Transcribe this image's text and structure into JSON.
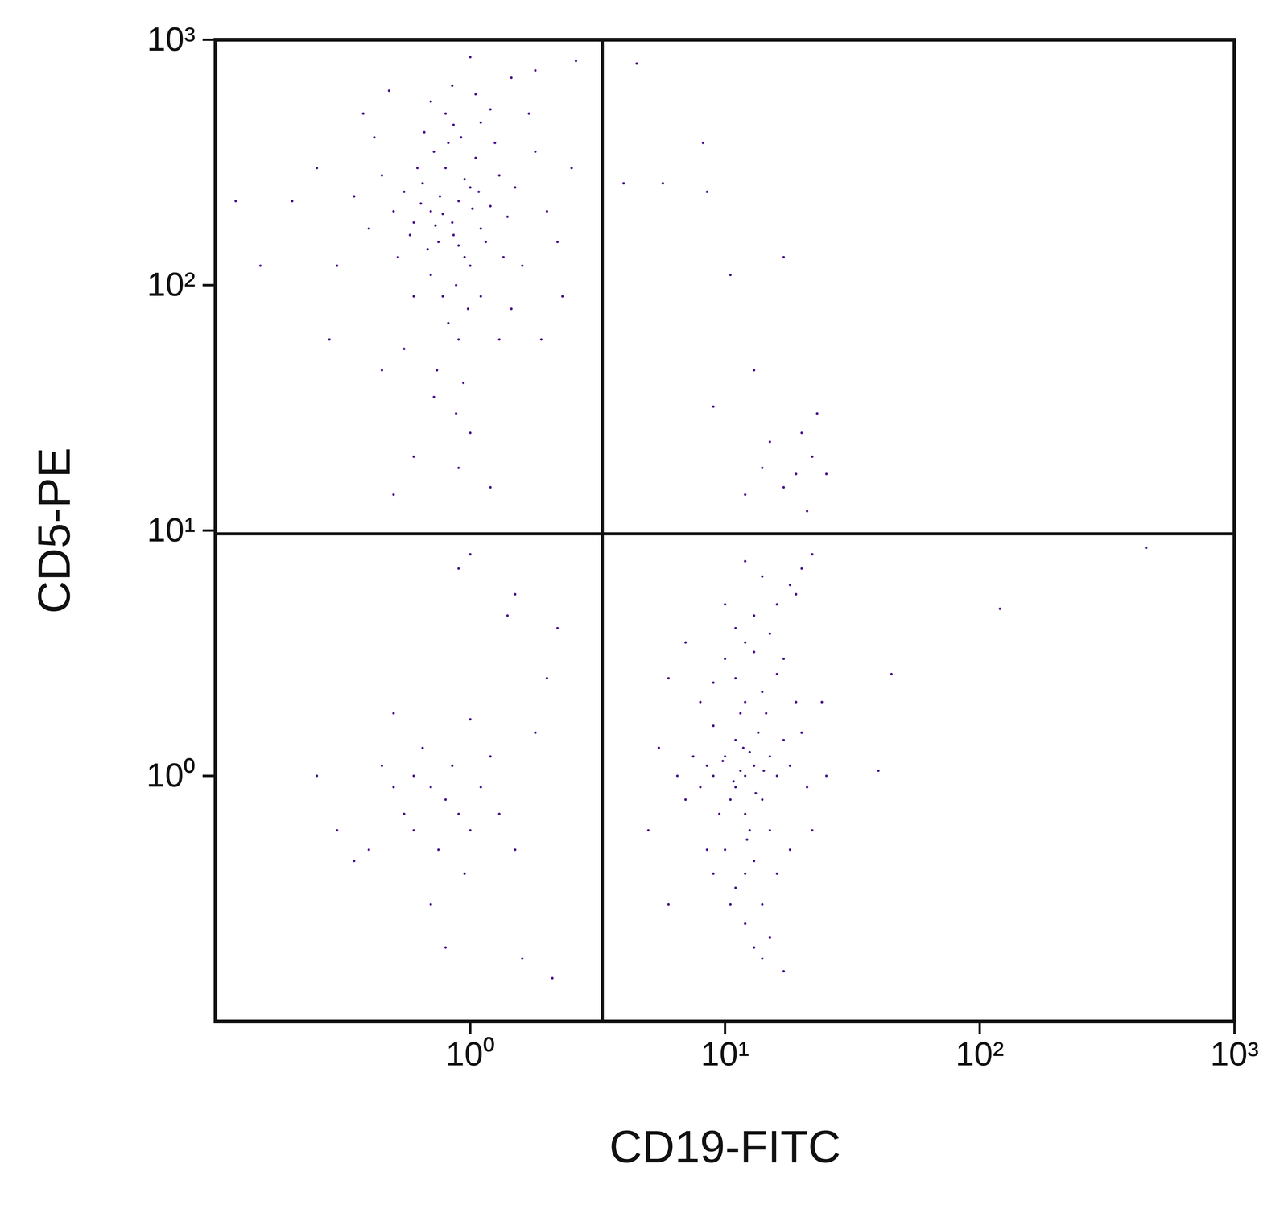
{
  "chart_data": {
    "type": "scatter",
    "xlabel": "CD19-FITC",
    "ylabel": "CD5-PE",
    "log": true,
    "grid": false,
    "color": "#4a148c",
    "marker": "dot",
    "xlim": [
      0.1,
      1000
    ],
    "ylim": [
      0.1,
      1000
    ],
    "xticks": [
      {
        "value": 1,
        "label": "10⁰"
      },
      {
        "value": 10,
        "label": "10¹"
      },
      {
        "value": 100,
        "label": "10²"
      },
      {
        "value": 1000,
        "label": "10³"
      }
    ],
    "yticks": [
      {
        "value": 1,
        "label": "10⁰"
      },
      {
        "value": 10,
        "label": "10¹"
      },
      {
        "value": 100,
        "label": "10²"
      },
      {
        "value": 1000,
        "label": "10³"
      }
    ],
    "quadrant_lines": {
      "x": 3.3,
      "y": 9.7
    },
    "points": [
      [
        0.85,
        180
      ],
      [
        0.9,
        220
      ],
      [
        0.75,
        150
      ],
      [
        1.0,
        250
      ],
      [
        0.8,
        300
      ],
      [
        0.7,
        200
      ],
      [
        0.95,
        130
      ],
      [
        1.1,
        170
      ],
      [
        0.65,
        260
      ],
      [
        0.88,
        100
      ],
      [
        1.2,
        210
      ],
      [
        0.6,
        180
      ],
      [
        0.78,
        90
      ],
      [
        1.05,
        330
      ],
      [
        0.92,
        400
      ],
      [
        0.55,
        240
      ],
      [
        0.72,
        350
      ],
      [
        1.3,
        280
      ],
      [
        0.82,
        70
      ],
      [
        1.0,
        120
      ],
      [
        0.68,
        140
      ],
      [
        1.15,
        150
      ],
      [
        0.5,
        200
      ],
      [
        0.86,
        450
      ],
      [
        1.25,
        380
      ],
      [
        0.98,
        80
      ],
      [
        0.62,
        300
      ],
      [
        0.76,
        230
      ],
      [
        1.4,
        190
      ],
      [
        0.58,
        160
      ],
      [
        0.9,
        60
      ],
      [
        1.1,
        90
      ],
      [
        0.7,
        110
      ],
      [
        1.35,
        130
      ],
      [
        0.45,
        280
      ],
      [
        0.8,
        500
      ],
      [
        1.5,
        250
      ],
      [
        0.66,
        420
      ],
      [
        1.2,
        520
      ],
      [
        0.52,
        130
      ],
      [
        0.94,
        40
      ],
      [
        0.74,
        45
      ],
      [
        1.6,
        120
      ],
      [
        0.4,
        170
      ],
      [
        1.05,
        600
      ],
      [
        0.85,
        650
      ],
      [
        1.8,
        350
      ],
      [
        0.35,
        230
      ],
      [
        1.45,
        80
      ],
      [
        0.6,
        90
      ],
      [
        0.88,
        30
      ],
      [
        1.0,
        25
      ],
      [
        0.55,
        55
      ],
      [
        1.3,
        60
      ],
      [
        0.72,
        35
      ],
      [
        2.0,
        200
      ],
      [
        0.3,
        120
      ],
      [
        1.7,
        500
      ],
      [
        0.42,
        400
      ],
      [
        2.2,
        150
      ],
      [
        0.25,
        300
      ],
      [
        0.2,
        220
      ],
      [
        0.15,
        120
      ],
      [
        0.12,
        220
      ],
      [
        0.28,
        60
      ],
      [
        0.45,
        45
      ],
      [
        0.6,
        20
      ],
      [
        0.9,
        18
      ],
      [
        1.2,
        15
      ],
      [
        0.5,
        14
      ],
      [
        2.5,
        300
      ],
      [
        2.3,
        90
      ],
      [
        1.9,
        60
      ],
      [
        0.38,
        500
      ],
      [
        0.48,
        620
      ],
      [
        1.45,
        700
      ],
      [
        1.8,
        750
      ],
      [
        2.6,
        820
      ],
      [
        1.0,
        850
      ],
      [
        0.7,
        560
      ],
      [
        1.1,
        460
      ],
      [
        0.82,
        380
      ],
      [
        0.95,
        270
      ],
      [
        0.78,
        195
      ],
      [
        0.86,
        160
      ],
      [
        1.02,
        205
      ],
      [
        0.73,
        175
      ],
      [
        0.9,
        145
      ],
      [
        1.08,
        240
      ],
      [
        0.64,
        215
      ],
      [
        12,
        1.0
      ],
      [
        11,
        0.9
      ],
      [
        13,
        1.1
      ],
      [
        10,
        1.2
      ],
      [
        14,
        0.8
      ],
      [
        12,
        0.7
      ],
      [
        11,
        1.4
      ],
      [
        9,
        1.0
      ],
      [
        15,
        1.2
      ],
      [
        12.5,
        0.6
      ],
      [
        10.5,
        0.8
      ],
      [
        13.5,
        1.5
      ],
      [
        11.5,
        1.8
      ],
      [
        9.5,
        0.7
      ],
      [
        16,
        1.0
      ],
      [
        8.5,
        1.1
      ],
      [
        12,
        2.0
      ],
      [
        14,
        2.2
      ],
      [
        10,
        0.5
      ],
      [
        13,
        0.45
      ],
      [
        11,
        2.5
      ],
      [
        15,
        0.6
      ],
      [
        17,
        1.4
      ],
      [
        8,
        0.9
      ],
      [
        12,
        0.4
      ],
      [
        14.5,
        1.8
      ],
      [
        9,
        1.6
      ],
      [
        10,
        3.0
      ],
      [
        13,
        3.2
      ],
      [
        11,
        0.35
      ],
      [
        16,
        2.6
      ],
      [
        18,
        1.1
      ],
      [
        7.5,
        1.2
      ],
      [
        12,
        3.5
      ],
      [
        15,
        3.8
      ],
      [
        14,
        0.3
      ],
      [
        10.5,
        0.3
      ],
      [
        19,
        2.0
      ],
      [
        7,
        0.8
      ],
      [
        9,
        2.4
      ],
      [
        13,
        4.5
      ],
      [
        16,
        5.0
      ],
      [
        11,
        4.0
      ],
      [
        12,
        0.25
      ],
      [
        15,
        0.22
      ],
      [
        20,
        1.5
      ],
      [
        21,
        0.9
      ],
      [
        6.5,
        1.0
      ],
      [
        8,
        2.0
      ],
      [
        17,
        3.0
      ],
      [
        18,
        6.0
      ],
      [
        20,
        7.0
      ],
      [
        22,
        8.0
      ],
      [
        19,
        5.5
      ],
      [
        14,
        6.5
      ],
      [
        10,
        5.0
      ],
      [
        13,
        0.2
      ],
      [
        16,
        0.4
      ],
      [
        11.5,
        1.05
      ],
      [
        12.5,
        1.25
      ],
      [
        10.8,
        0.95
      ],
      [
        13.2,
        0.85
      ],
      [
        11.8,
        1.3
      ],
      [
        9.8,
        1.15
      ],
      [
        14.2,
        1.05
      ],
      [
        12.2,
        0.55
      ],
      [
        6,
        2.5
      ],
      [
        5.5,
        1.3
      ],
      [
        8.5,
        0.5
      ],
      [
        24,
        2.0
      ],
      [
        25,
        1.0
      ],
      [
        22,
        0.6
      ],
      [
        18,
        0.5
      ],
      [
        9,
        0.4
      ],
      [
        7,
        3.5
      ],
      [
        5,
        0.6
      ],
      [
        6,
        0.3
      ],
      [
        14,
        0.18
      ],
      [
        17,
        0.16
      ],
      [
        12,
        7.5
      ],
      [
        21,
        12
      ],
      [
        22,
        20
      ],
      [
        20,
        25
      ],
      [
        23,
        30
      ],
      [
        17,
        15
      ],
      [
        14,
        18
      ],
      [
        15,
        23
      ],
      [
        12,
        14
      ],
      [
        19,
        17
      ],
      [
        25,
        17
      ],
      [
        0.8,
        0.8
      ],
      [
        0.7,
        0.9
      ],
      [
        0.9,
        0.7
      ],
      [
        0.6,
        1.0
      ],
      [
        1.0,
        0.6
      ],
      [
        0.75,
        0.5
      ],
      [
        0.85,
        1.1
      ],
      [
        1.1,
        0.9
      ],
      [
        0.55,
        0.7
      ],
      [
        0.65,
        1.3
      ],
      [
        1.2,
        1.2
      ],
      [
        0.5,
        0.9
      ],
      [
        0.95,
        0.4
      ],
      [
        0.45,
        1.1
      ],
      [
        1.3,
        0.7
      ],
      [
        0.7,
        0.3
      ],
      [
        0.8,
        0.2
      ],
      [
        1.5,
        0.5
      ],
      [
        0.6,
        0.6
      ],
      [
        0.4,
        0.5
      ],
      [
        0.3,
        0.6
      ],
      [
        1.0,
        1.7
      ],
      [
        0.5,
        1.8
      ],
      [
        1.4,
        4.5
      ],
      [
        1.5,
        5.5
      ],
      [
        2.0,
        2.5
      ],
      [
        1.8,
        1.5
      ],
      [
        2.2,
        4.0
      ],
      [
        1.0,
        8.0
      ],
      [
        0.9,
        7.0
      ],
      [
        0.25,
        1.0
      ],
      [
        0.35,
        0.45
      ],
      [
        1.6,
        0.18
      ],
      [
        2.1,
        0.15
      ],
      [
        4.5,
        800
      ],
      [
        4,
        260
      ],
      [
        5.7,
        260
      ],
      [
        8.2,
        380
      ],
      [
        8.5,
        240
      ],
      [
        10.5,
        110
      ],
      [
        17,
        130
      ],
      [
        13,
        45
      ],
      [
        9,
        32
      ],
      [
        120,
        4.8
      ],
      [
        450,
        8.5
      ],
      [
        45,
        2.6
      ],
      [
        40,
        1.05
      ]
    ]
  }
}
